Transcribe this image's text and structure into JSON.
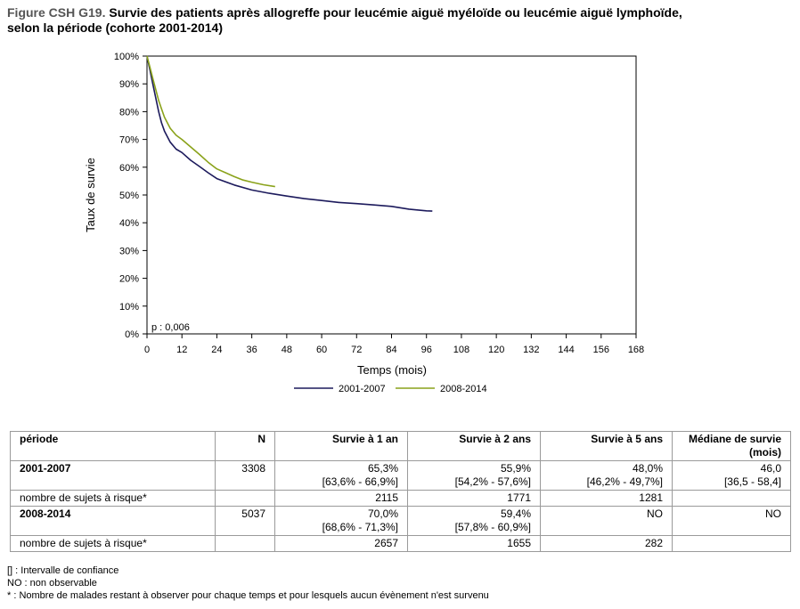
{
  "figure": {
    "prefix": "Figure CSH G19.",
    "title_line1": "Survie des patients après allogreffe pour leucémie aiguë myéloïde ou leucémie aiguë lymphoïde,",
    "title_line2": "selon la période (cohorte 2001-2014)"
  },
  "chart_data": {
    "type": "line",
    "xlabel": "Temps (mois)",
    "ylabel": "Taux de survie",
    "xlim": [
      0,
      168
    ],
    "ylim": [
      0,
      100
    ],
    "x_ticks": [
      0,
      12,
      24,
      36,
      48,
      60,
      72,
      84,
      96,
      108,
      120,
      132,
      144,
      156,
      168
    ],
    "y_ticks": [
      0,
      10,
      20,
      30,
      40,
      50,
      60,
      70,
      80,
      90,
      100
    ],
    "y_tick_labels": [
      "0%",
      "10%",
      "20%",
      "30%",
      "40%",
      "50%",
      "60%",
      "70%",
      "80%",
      "90%",
      "100%"
    ],
    "grid": false,
    "legend_position": "bottom",
    "annotation": "p : 0,006",
    "series": [
      {
        "name": "2001-2007",
        "color": "#1c1a5c",
        "x": [
          0,
          1,
          2,
          3,
          4,
          5,
          6,
          8,
          10,
          12,
          15,
          18,
          21,
          24,
          30,
          36,
          42,
          48,
          54,
          60,
          66,
          72,
          78,
          84,
          90,
          96,
          98
        ],
        "y": [
          100,
          95,
          90,
          85,
          80,
          76,
          73,
          69,
          66.5,
          65.3,
          62.5,
          60.3,
          58,
          55.9,
          53.6,
          51.8,
          50.6,
          49.6,
          48.7,
          48.0,
          47.3,
          46.9,
          46.4,
          45.9,
          44.9,
          44.3,
          44.2
        ]
      },
      {
        "name": "2008-2014",
        "color": "#8aa21a",
        "x": [
          0,
          1,
          2,
          3,
          4,
          5,
          6,
          8,
          10,
          12,
          15,
          18,
          21,
          24,
          27,
          30,
          33,
          36,
          40,
          44
        ],
        "y": [
          100,
          96,
          92,
          88,
          84,
          81,
          78,
          74,
          71.5,
          70.0,
          67.3,
          64.6,
          61.8,
          59.4,
          58.0,
          56.6,
          55.4,
          54.6,
          53.7,
          53.0
        ]
      }
    ]
  },
  "table": {
    "headers": [
      "période",
      "N",
      "Survie à 1 an",
      "Survie à 2 ans",
      "Survie à 5 ans",
      "Médiane de survie (mois)"
    ],
    "groups": [
      {
        "name": "2001-2007",
        "n": "3308",
        "s1": "65,3%",
        "ci1": "[63,6% - 66,9%]",
        "s2": "55,9%",
        "ci2": "[54,2% - 57,6%]",
        "s5": "48,0%",
        "ci5": "[46,2% - 49,7%]",
        "median": "46,0",
        "median_ci": "[36,5 - 58,4]",
        "risk_label": "nombre de sujets à risque*",
        "r1": "2115",
        "r2": "1771",
        "r5": "1281"
      },
      {
        "name": "2008-2014",
        "n": "5037",
        "s1": "70,0%",
        "ci1": "[68,6% - 71,3%]",
        "s2": "59,4%",
        "ci2": "[57,8% - 60,9%]",
        "s5": "NO",
        "ci5": "",
        "median": "NO",
        "median_ci": "",
        "risk_label": "nombre de sujets à risque*",
        "r1": "2657",
        "r2": "1655",
        "r5": "282"
      }
    ]
  },
  "footnotes": [
    "[] : Intervalle de confiance",
    "NO : non observable",
    "* : Nombre de malades restant à observer pour chaque temps et pour lesquels aucun évènement n'est survenu"
  ]
}
